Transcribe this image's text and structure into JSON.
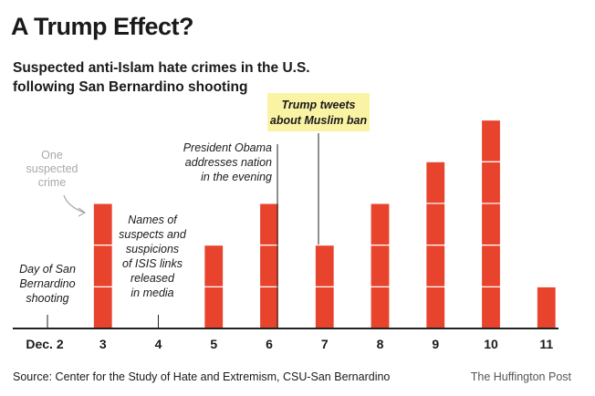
{
  "header": {
    "title": "A Trump Effect?",
    "subtitle_line1": "Suspected anti-Islam hate crimes in the U.S.",
    "subtitle_line2": "following San Bernardino shooting"
  },
  "footer": {
    "source": "Source: Center for the Study of Hate and Extremism, CSU-San Bernardino",
    "brand": "The Huffington Post"
  },
  "colors": {
    "bar": "#e8432c",
    "highlight": "#fbf3a4",
    "axis": "#222222",
    "muted": "#a9a9a9"
  },
  "chart_data": {
    "type": "bar",
    "title": "A Trump Effect?",
    "subtitle": "Suspected anti-Islam hate crimes in the U.S. following San Bernardino shooting",
    "categories": [
      "Dec. 2",
      "3",
      "4",
      "5",
      "6",
      "7",
      "8",
      "9",
      "10",
      "11"
    ],
    "values": [
      0,
      3,
      0,
      2,
      3,
      2,
      3,
      4,
      5,
      1
    ],
    "unit_note": "each stacked block represents one suspected crime",
    "ylim": [
      0,
      5
    ],
    "grid": false,
    "annotations": {
      "legend_lines": [
        "One",
        "suspected",
        "crime"
      ],
      "dec2_lines": [
        "Day of San",
        "Bernardino",
        "shooting"
      ],
      "dec4_lines": [
        "Names of",
        "suspects and",
        "suspicions",
        "of ISIS links",
        "released",
        "in media"
      ],
      "obama_lines": [
        "President Obama",
        "addresses nation",
        "in the evening"
      ],
      "trump_lines": [
        "Trump tweets",
        "about Muslim ban"
      ]
    }
  }
}
